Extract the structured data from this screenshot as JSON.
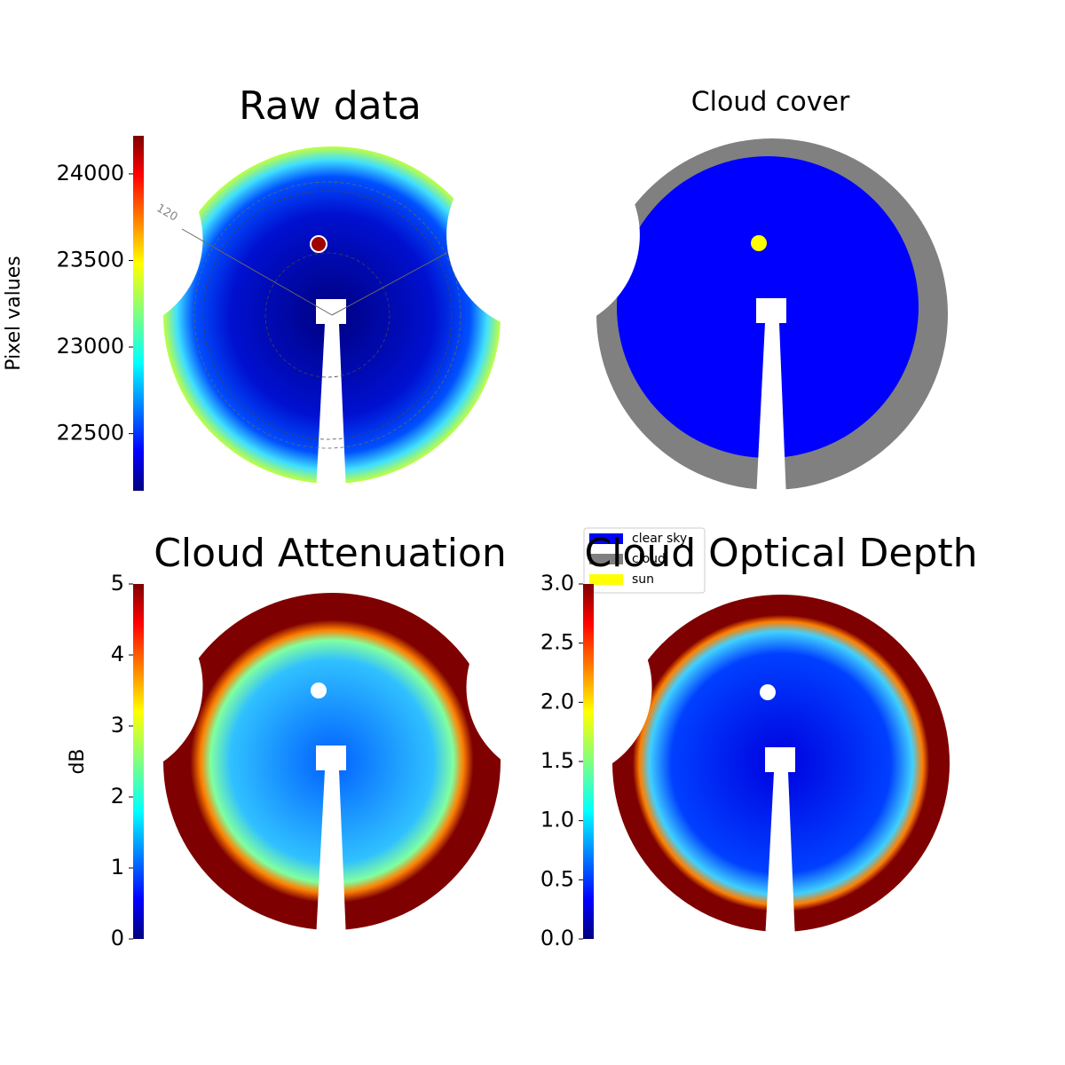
{
  "chart_data": [
    {
      "type": "image",
      "title": "Raw data",
      "annotation": "120",
      "colorbar": {
        "label": "Pixel values",
        "lim": [
          22170,
          24220
        ],
        "ticks": [
          22500,
          23000,
          23500,
          24000
        ]
      }
    },
    {
      "type": "image",
      "title": "Cloud cover",
      "legend": [
        {
          "name": "clear sky",
          "color": "#0000ff"
        },
        {
          "name": "cloud",
          "color": "#808080"
        },
        {
          "name": "sun",
          "color": "#ffff00"
        }
      ]
    },
    {
      "type": "image",
      "title": "Cloud Attenuation",
      "colorbar": {
        "label": "dB",
        "lim": [
          0,
          5
        ],
        "ticks": [
          0,
          1,
          2,
          3,
          4,
          5
        ]
      }
    },
    {
      "type": "image",
      "title": "Cloud Optical Depth",
      "colorbar": {
        "lim": [
          0,
          3
        ],
        "ticks": [
          {
            "value": 0,
            "label": "0.0"
          },
          {
            "value": 0.5,
            "label": "0.5"
          },
          {
            "value": 1,
            "label": "1.0"
          },
          {
            "value": 1.5,
            "label": "1.5"
          },
          {
            "value": 2,
            "label": "2.0"
          },
          {
            "value": 2.5,
            "label": "2.5"
          },
          {
            "value": 3,
            "label": "3.0"
          }
        ]
      }
    }
  ]
}
